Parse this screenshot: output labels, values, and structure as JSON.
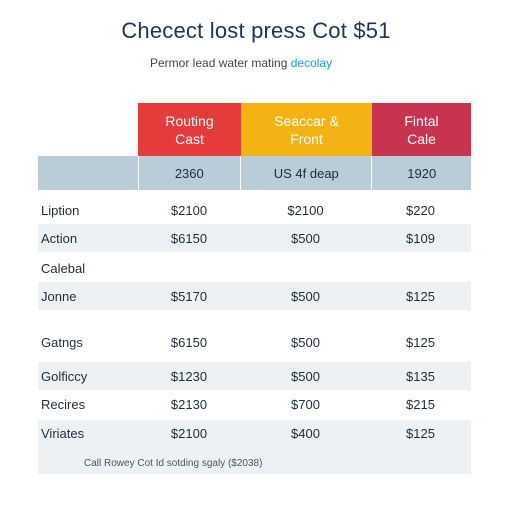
{
  "title": "Checect lost press Cot $51",
  "subtitle": {
    "text": "Permor lead water mating",
    "accent": "decolay"
  },
  "headers": [
    "Routing\nCast",
    "Seaccar &\nFront",
    "Fintal\nCale"
  ],
  "subheader": [
    "2360",
    "US 4f deap",
    "1920"
  ],
  "rows": [
    {
      "label": "Liption",
      "values": [
        "$2100",
        "$2100",
        "$220"
      ]
    },
    {
      "label": "Action",
      "values": [
        "$6150",
        "$500",
        "$109"
      ]
    },
    {
      "label": "Calebal",
      "values": [
        "",
        "",
        ""
      ]
    },
    {
      "label": "Jonne",
      "values": [
        "$5170",
        "$500",
        "$125"
      ]
    },
    {
      "label": "Gatngs",
      "values": [
        "$6150",
        "$500",
        "$125"
      ]
    },
    {
      "label": "Golficcy",
      "values": [
        "$1230",
        "$500",
        "$135"
      ]
    },
    {
      "label": "Recires",
      "values": [
        "$2130",
        "$700",
        "$215"
      ]
    },
    {
      "label": "Viriates",
      "values": [
        "$2100",
        "$400",
        "$125"
      ]
    }
  ],
  "footnote": "Call Rowey Cot Id sotding sgaly ($2038)"
}
